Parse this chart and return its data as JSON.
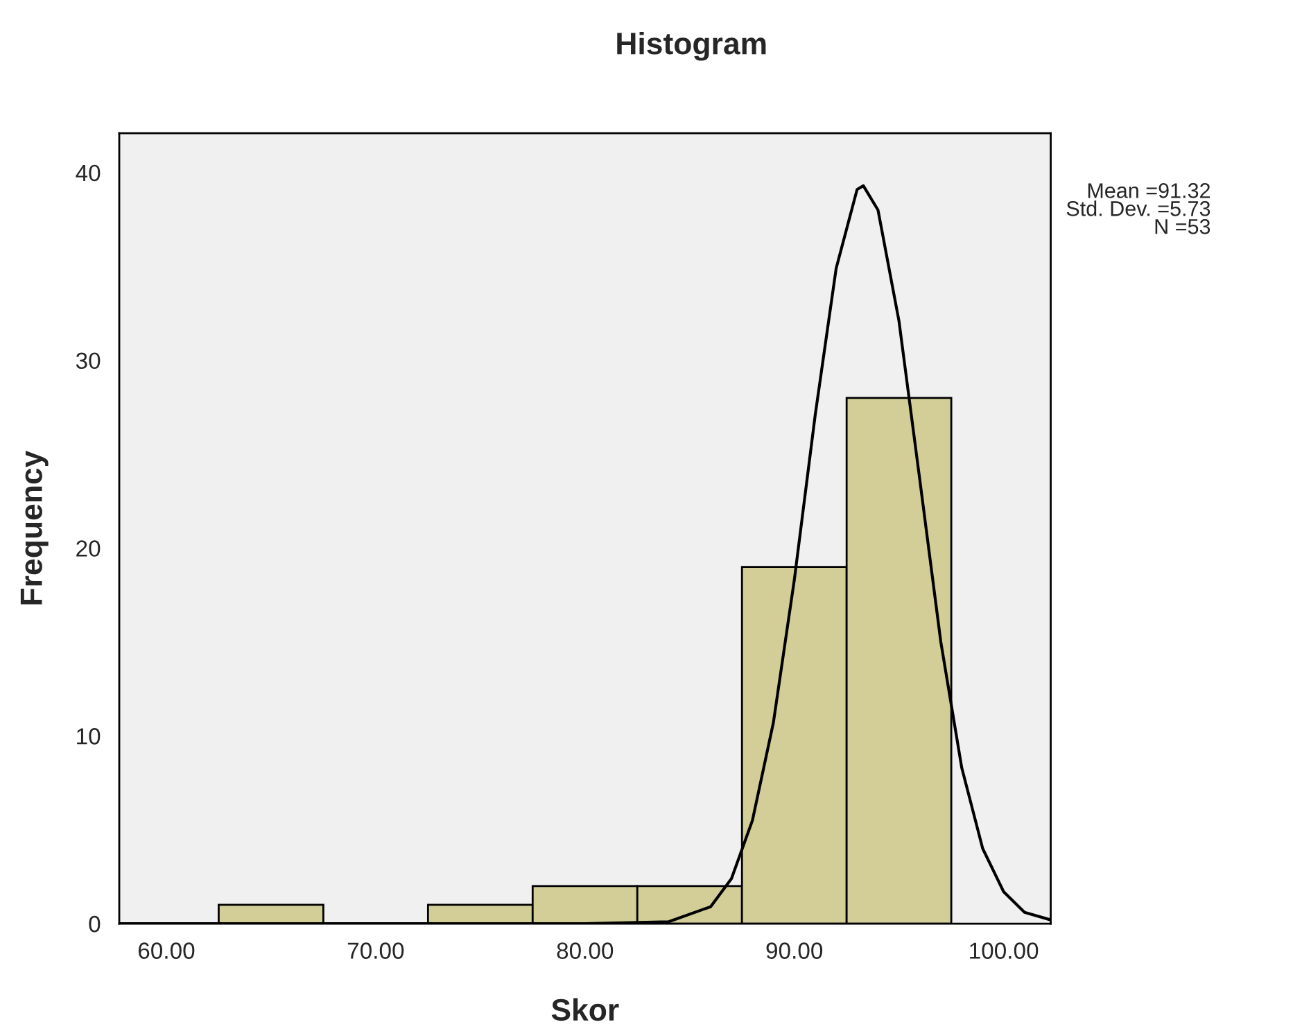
{
  "chart_data": {
    "type": "histogram",
    "title": "Histogram",
    "xlabel": "Skor",
    "ylabel": "Frequency",
    "bins": [
      62.5,
      67.5,
      72.5,
      77.5,
      82.5,
      87.5,
      92.5,
      97.5
    ],
    "values": [
      1,
      0,
      1,
      2,
      2,
      19,
      28
    ],
    "color": "#d3ce98",
    "series": [
      {
        "type": "line",
        "color": "#000000",
        "x": [
          57.75,
          80,
          84,
          86,
          87,
          88,
          89,
          90,
          91,
          92,
          93,
          93.3,
          94,
          95,
          96,
          97,
          98,
          99,
          100,
          101,
          102.25
        ],
        "values": [
          0,
          0,
          0.1,
          0.9,
          2.4,
          5.5,
          10.7,
          18.3,
          27.1,
          34.9,
          39.1,
          39.3,
          38.0,
          32.1,
          23.6,
          15.0,
          8.3,
          4.0,
          1.7,
          0.6,
          0.2
        ]
      }
    ],
    "xlim": [
      57.75,
      102.25
    ],
    "ylim": [
      0,
      42.1
    ],
    "xticks": [
      {
        "value": 60,
        "label": "60.00"
      },
      {
        "value": 70,
        "label": "70.00"
      },
      {
        "value": 80,
        "label": "80.00"
      },
      {
        "value": 90,
        "label": "90.00"
      },
      {
        "value": 100,
        "label": "100.00"
      }
    ],
    "yticks": [
      0,
      10,
      20,
      30,
      40
    ],
    "grid": false,
    "legend": false,
    "annotations": [
      "Mean =91.32",
      "Std. Dev. =5.73",
      "N =53"
    ]
  }
}
